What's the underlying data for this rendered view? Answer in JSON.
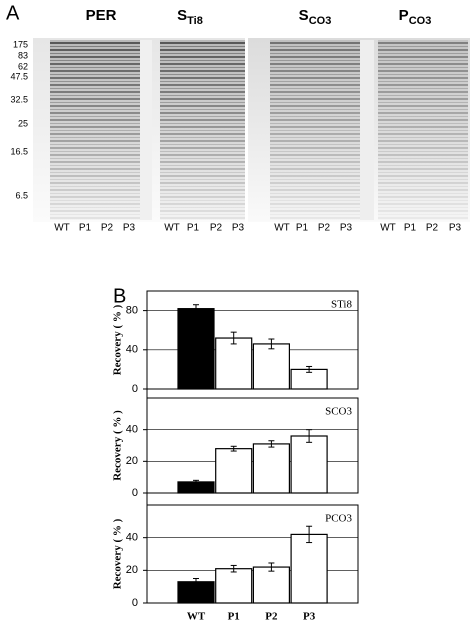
{
  "panel_a": {
    "label": "A",
    "titles": [
      {
        "main": "PER"
      },
      {
        "main": "S",
        "sub": "Ti8"
      },
      {
        "main": "S",
        "sub": "CO3"
      },
      {
        "main": "P",
        "sub": "CO3"
      }
    ],
    "markers": [
      "175",
      "83",
      "62",
      "47.5",
      "32.5",
      "25",
      "16.5",
      "6.5"
    ],
    "lanes": [
      "WT",
      "P1",
      "P2",
      "P3",
      "WT",
      "P1",
      "P2",
      "P3",
      "WT",
      "P1",
      "P2",
      "P3",
      "WT",
      "P1",
      "P2",
      "P3"
    ]
  },
  "panel_b": {
    "label": "B"
  },
  "chart_data": [
    {
      "type": "bar",
      "label": "STi8",
      "ylabel": "Recovery ( % )",
      "categories": [
        "WT",
        "P1",
        "P2",
        "P3"
      ],
      "values": [
        82,
        52,
        46,
        20
      ],
      "errors": [
        4,
        6,
        5,
        3
      ],
      "colors": [
        "#000000",
        "#ffffff",
        "#ffffff",
        "#ffffff"
      ],
      "ylim": [
        0,
        100
      ],
      "yticks": [
        0,
        40,
        80
      ],
      "grid": true,
      "show_categories": false
    },
    {
      "type": "bar",
      "label": "SCO3",
      "ylabel": "Recovery ( % )",
      "categories": [
        "WT",
        "P1",
        "P2",
        "P3"
      ],
      "values": [
        7,
        28,
        31,
        36
      ],
      "errors": [
        1,
        1.5,
        2,
        4
      ],
      "colors": [
        "#000000",
        "#ffffff",
        "#ffffff",
        "#ffffff"
      ],
      "ylim": [
        0,
        60
      ],
      "yticks": [
        0,
        20,
        40
      ],
      "grid": true,
      "show_categories": false
    },
    {
      "type": "bar",
      "label": "PCO3",
      "ylabel": "Recovery ( % )",
      "categories": [
        "WT",
        "P1",
        "P2",
        "P3"
      ],
      "values": [
        13,
        21,
        22,
        42
      ],
      "errors": [
        2,
        2,
        2.5,
        5
      ],
      "colors": [
        "#000000",
        "#ffffff",
        "#ffffff",
        "#ffffff"
      ],
      "ylim": [
        0,
        60
      ],
      "yticks": [
        0,
        20,
        40
      ],
      "grid": true,
      "show_categories": true
    }
  ]
}
